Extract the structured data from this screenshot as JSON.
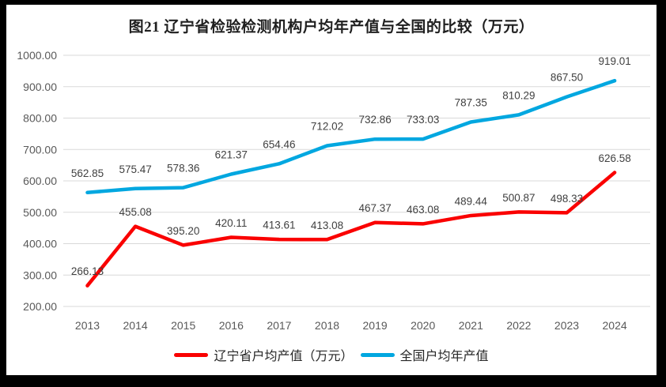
{
  "chart_data": {
    "type": "line",
    "title": "图21 辽宁省检验检测机构户均年产值与全国的比较（万元）",
    "categories": [
      "2013",
      "2014",
      "2015",
      "2016",
      "2017",
      "2018",
      "2019",
      "2020",
      "2021",
      "2022",
      "2023",
      "2024"
    ],
    "series": [
      {
        "id": "liaoning",
        "name": "辽宁省户均产值（万元）",
        "color": "#FA0000",
        "values": [
          266.13,
          455.08,
          395.2,
          420.11,
          413.61,
          413.08,
          467.37,
          463.08,
          489.44,
          500.87,
          498.33,
          626.58
        ]
      },
      {
        "id": "national",
        "name": "全国户均年产值",
        "color": "#00A7E0",
        "values": [
          562.85,
          575.47,
          578.36,
          621.37,
          654.46,
          712.02,
          732.86,
          733.03,
          787.35,
          810.29,
          867.5,
          919.01
        ]
      }
    ],
    "ylim": [
      200,
      1000
    ],
    "yticks": [
      200,
      300,
      400,
      500,
      600,
      700,
      800,
      900,
      1000
    ],
    "ytick_format": "0.00",
    "grid": true,
    "grid_color": "#D9D9D9",
    "legend_position": "bottom",
    "data_labels": true
  }
}
